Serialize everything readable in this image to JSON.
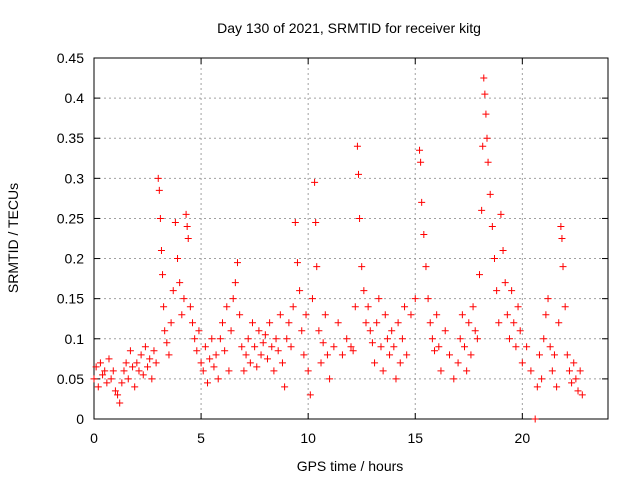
{
  "chart_data": {
    "type": "scatter",
    "title": "Day 130 of 2021, SRMTID for receiver kitg",
    "xlabel": "GPS time / hours",
    "ylabel": "SRMTID / TECUs",
    "xlim": [
      0,
      24
    ],
    "ylim": [
      0,
      0.45
    ],
    "xticks": [
      0,
      5,
      10,
      15,
      20
    ],
    "xtick_labels": [
      "0",
      "5",
      "10",
      "15",
      "20"
    ],
    "yticks": [
      0,
      0.05,
      0.1,
      0.15,
      0.2,
      0.25,
      0.3,
      0.35,
      0.4,
      0.45
    ],
    "ytick_labels": [
      "0",
      "0.05",
      "0.1",
      "0.15",
      "0.2",
      "0.25",
      "0.3",
      "0.35",
      "0.4",
      "0.45"
    ],
    "grid": true,
    "marker": "+",
    "color": "#ff0000",
    "series": [
      {
        "name": "SRMTID",
        "points": [
          [
            0.0,
            0.05
          ],
          [
            0.1,
            0.065
          ],
          [
            0.2,
            0.04
          ],
          [
            0.3,
            0.07
          ],
          [
            0.4,
            0.055
          ],
          [
            0.5,
            0.06
          ],
          [
            0.6,
            0.045
          ],
          [
            0.7,
            0.075
          ],
          [
            0.8,
            0.05
          ],
          [
            0.9,
            0.06
          ],
          [
            1.0,
            0.035
          ],
          [
            1.1,
            0.03
          ],
          [
            1.2,
            0.02
          ],
          [
            1.3,
            0.045
          ],
          [
            1.4,
            0.06
          ],
          [
            1.5,
            0.07
          ],
          [
            1.6,
            0.05
          ],
          [
            1.7,
            0.085
          ],
          [
            1.8,
            0.065
          ],
          [
            1.9,
            0.04
          ],
          [
            2.0,
            0.07
          ],
          [
            2.1,
            0.06
          ],
          [
            2.2,
            0.08
          ],
          [
            2.3,
            0.055
          ],
          [
            2.4,
            0.09
          ],
          [
            2.5,
            0.065
          ],
          [
            2.6,
            0.075
          ],
          [
            2.7,
            0.05
          ],
          [
            2.8,
            0.085
          ],
          [
            2.9,
            0.07
          ],
          [
            3.0,
            0.3
          ],
          [
            3.05,
            0.285
          ],
          [
            3.1,
            0.25
          ],
          [
            3.15,
            0.21
          ],
          [
            3.2,
            0.18
          ],
          [
            3.25,
            0.14
          ],
          [
            3.3,
            0.11
          ],
          [
            3.4,
            0.095
          ],
          [
            3.5,
            0.08
          ],
          [
            3.6,
            0.12
          ],
          [
            3.7,
            0.16
          ],
          [
            3.8,
            0.245
          ],
          [
            3.9,
            0.2
          ],
          [
            4.0,
            0.17
          ],
          [
            4.1,
            0.13
          ],
          [
            4.2,
            0.15
          ],
          [
            4.3,
            0.255
          ],
          [
            4.35,
            0.24
          ],
          [
            4.4,
            0.225
          ],
          [
            4.5,
            0.14
          ],
          [
            4.6,
            0.12
          ],
          [
            4.7,
            0.1
          ],
          [
            4.8,
            0.085
          ],
          [
            4.9,
            0.11
          ],
          [
            5.0,
            0.07
          ],
          [
            5.1,
            0.06
          ],
          [
            5.2,
            0.09
          ],
          [
            5.3,
            0.045
          ],
          [
            5.4,
            0.075
          ],
          [
            5.5,
            0.1
          ],
          [
            5.6,
            0.065
          ],
          [
            5.7,
            0.08
          ],
          [
            5.8,
            0.05
          ],
          [
            5.9,
            0.1
          ],
          [
            6.0,
            0.12
          ],
          [
            6.1,
            0.085
          ],
          [
            6.2,
            0.14
          ],
          [
            6.3,
            0.06
          ],
          [
            6.4,
            0.11
          ],
          [
            6.5,
            0.15
          ],
          [
            6.6,
            0.17
          ],
          [
            6.7,
            0.195
          ],
          [
            6.8,
            0.13
          ],
          [
            6.9,
            0.09
          ],
          [
            7.0,
            0.06
          ],
          [
            7.1,
            0.08
          ],
          [
            7.2,
            0.1
          ],
          [
            7.3,
            0.07
          ],
          [
            7.4,
            0.12
          ],
          [
            7.5,
            0.09
          ],
          [
            7.6,
            0.065
          ],
          [
            7.7,
            0.11
          ],
          [
            7.8,
            0.08
          ],
          [
            7.9,
            0.095
          ],
          [
            8.0,
            0.105
          ],
          [
            8.1,
            0.075
          ],
          [
            8.2,
            0.12
          ],
          [
            8.3,
            0.09
          ],
          [
            8.4,
            0.06
          ],
          [
            8.5,
            0.1
          ],
          [
            8.6,
            0.085
          ],
          [
            8.7,
            0.13
          ],
          [
            8.8,
            0.07
          ],
          [
            8.9,
            0.04
          ],
          [
            9.0,
            0.1
          ],
          [
            9.1,
            0.12
          ],
          [
            9.2,
            0.09
          ],
          [
            9.3,
            0.14
          ],
          [
            9.4,
            0.245
          ],
          [
            9.5,
            0.195
          ],
          [
            9.6,
            0.16
          ],
          [
            9.7,
            0.11
          ],
          [
            9.8,
            0.08
          ],
          [
            9.9,
            0.13
          ],
          [
            10.0,
            0.06
          ],
          [
            10.1,
            0.03
          ],
          [
            10.2,
            0.15
          ],
          [
            10.3,
            0.295
          ],
          [
            10.35,
            0.245
          ],
          [
            10.4,
            0.19
          ],
          [
            10.5,
            0.11
          ],
          [
            10.6,
            0.07
          ],
          [
            10.7,
            0.095
          ],
          [
            10.8,
            0.13
          ],
          [
            10.9,
            0.08
          ],
          [
            11.0,
            0.05
          ],
          [
            11.2,
            0.09
          ],
          [
            11.4,
            0.12
          ],
          [
            11.6,
            0.08
          ],
          [
            11.8,
            0.1
          ],
          [
            12.0,
            0.09
          ],
          [
            12.1,
            0.085
          ],
          [
            12.2,
            0.14
          ],
          [
            12.3,
            0.34
          ],
          [
            12.35,
            0.305
          ],
          [
            12.4,
            0.25
          ],
          [
            12.5,
            0.19
          ],
          [
            12.6,
            0.16
          ],
          [
            12.7,
            0.12
          ],
          [
            12.8,
            0.14
          ],
          [
            12.9,
            0.11
          ],
          [
            13.0,
            0.095
          ],
          [
            13.1,
            0.07
          ],
          [
            13.2,
            0.12
          ],
          [
            13.3,
            0.15
          ],
          [
            13.4,
            0.09
          ],
          [
            13.5,
            0.06
          ],
          [
            13.6,
            0.13
          ],
          [
            13.7,
            0.1
          ],
          [
            13.8,
            0.08
          ],
          [
            13.9,
            0.11
          ],
          [
            14.0,
            0.09
          ],
          [
            14.1,
            0.05
          ],
          [
            14.2,
            0.12
          ],
          [
            14.3,
            0.07
          ],
          [
            14.4,
            0.1
          ],
          [
            14.5,
            0.14
          ],
          [
            14.6,
            0.08
          ],
          [
            14.8,
            0.13
          ],
          [
            15.0,
            0.15
          ],
          [
            15.2,
            0.335
          ],
          [
            15.25,
            0.32
          ],
          [
            15.3,
            0.27
          ],
          [
            15.4,
            0.23
          ],
          [
            15.5,
            0.19
          ],
          [
            15.6,
            0.15
          ],
          [
            15.7,
            0.12
          ],
          [
            15.8,
            0.1
          ],
          [
            15.9,
            0.085
          ],
          [
            16.0,
            0.13
          ],
          [
            16.1,
            0.09
          ],
          [
            16.2,
            0.06
          ],
          [
            16.4,
            0.11
          ],
          [
            16.6,
            0.08
          ],
          [
            16.8,
            0.05
          ],
          [
            17.0,
            0.07
          ],
          [
            17.1,
            0.1
          ],
          [
            17.2,
            0.13
          ],
          [
            17.3,
            0.09
          ],
          [
            17.4,
            0.06
          ],
          [
            17.5,
            0.12
          ],
          [
            17.6,
            0.08
          ],
          [
            17.7,
            0.14
          ],
          [
            17.8,
            0.11
          ],
          [
            17.9,
            0.1
          ],
          [
            18.0,
            0.18
          ],
          [
            18.1,
            0.26
          ],
          [
            18.15,
            0.34
          ],
          [
            18.2,
            0.425
          ],
          [
            18.25,
            0.405
          ],
          [
            18.3,
            0.38
          ],
          [
            18.35,
            0.35
          ],
          [
            18.4,
            0.32
          ],
          [
            18.5,
            0.28
          ],
          [
            18.6,
            0.24
          ],
          [
            18.7,
            0.2
          ],
          [
            18.8,
            0.16
          ],
          [
            18.9,
            0.12
          ],
          [
            19.0,
            0.255
          ],
          [
            19.1,
            0.21
          ],
          [
            19.2,
            0.17
          ],
          [
            19.3,
            0.13
          ],
          [
            19.4,
            0.1
          ],
          [
            19.5,
            0.16
          ],
          [
            19.6,
            0.12
          ],
          [
            19.7,
            0.09
          ],
          [
            19.8,
            0.14
          ],
          [
            19.9,
            0.11
          ],
          [
            20.0,
            0.07
          ],
          [
            20.2,
            0.09
          ],
          [
            20.4,
            0.06
          ],
          [
            20.6,
            0.0
          ],
          [
            20.7,
            0.04
          ],
          [
            20.8,
            0.08
          ],
          [
            20.9,
            0.05
          ],
          [
            21.0,
            0.1
          ],
          [
            21.1,
            0.13
          ],
          [
            21.2,
            0.15
          ],
          [
            21.3,
            0.09
          ],
          [
            21.4,
            0.06
          ],
          [
            21.5,
            0.08
          ],
          [
            21.6,
            0.04
          ],
          [
            21.7,
            0.12
          ],
          [
            21.8,
            0.24
          ],
          [
            21.85,
            0.225
          ],
          [
            21.9,
            0.19
          ],
          [
            22.0,
            0.14
          ],
          [
            22.1,
            0.08
          ],
          [
            22.2,
            0.06
          ],
          [
            22.3,
            0.045
          ],
          [
            22.4,
            0.07
          ],
          [
            22.5,
            0.05
          ],
          [
            22.6,
            0.035
          ],
          [
            22.7,
            0.06
          ],
          [
            22.8,
            0.03
          ]
        ]
      }
    ]
  }
}
